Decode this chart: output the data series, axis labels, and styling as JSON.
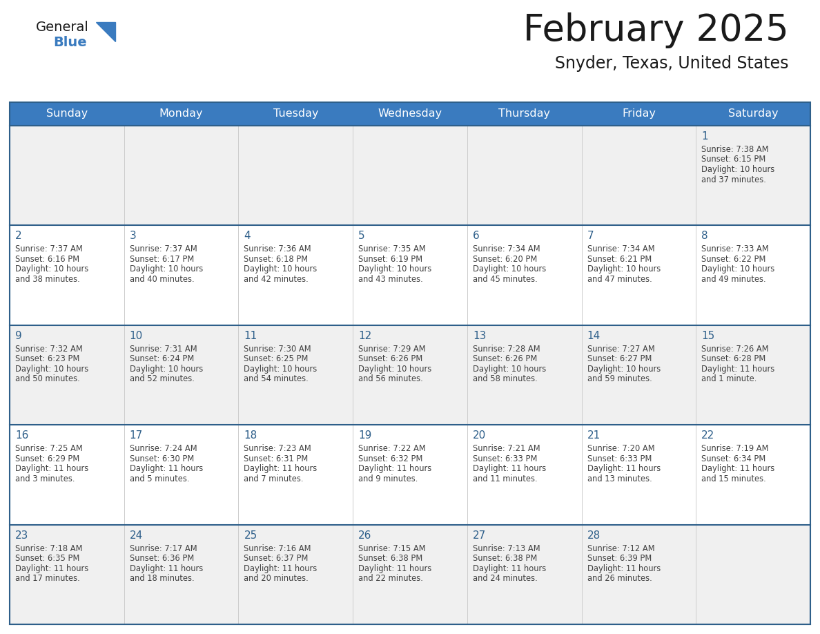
{
  "title": "February 2025",
  "subtitle": "Snyder, Texas, United States",
  "header_bg": "#3A7BBF",
  "header_text_color": "#FFFFFF",
  "cell_bg_white": "#FFFFFF",
  "cell_bg_gray": "#F0F0F0",
  "border_color": "#2E5F8A",
  "sep_color": "#BBBBBB",
  "day_names": [
    "Sunday",
    "Monday",
    "Tuesday",
    "Wednesday",
    "Thursday",
    "Friday",
    "Saturday"
  ],
  "calendar_data": [
    [
      null,
      null,
      null,
      null,
      null,
      null,
      {
        "day": 1,
        "sunrise": "7:38 AM",
        "sunset": "6:15 PM",
        "daylight": "10 hours",
        "daylight2": "and 37 minutes."
      }
    ],
    [
      {
        "day": 2,
        "sunrise": "7:37 AM",
        "sunset": "6:16 PM",
        "daylight": "10 hours",
        "daylight2": "and 38 minutes."
      },
      {
        "day": 3,
        "sunrise": "7:37 AM",
        "sunset": "6:17 PM",
        "daylight": "10 hours",
        "daylight2": "and 40 minutes."
      },
      {
        "day": 4,
        "sunrise": "7:36 AM",
        "sunset": "6:18 PM",
        "daylight": "10 hours",
        "daylight2": "and 42 minutes."
      },
      {
        "day": 5,
        "sunrise": "7:35 AM",
        "sunset": "6:19 PM",
        "daylight": "10 hours",
        "daylight2": "and 43 minutes."
      },
      {
        "day": 6,
        "sunrise": "7:34 AM",
        "sunset": "6:20 PM",
        "daylight": "10 hours",
        "daylight2": "and 45 minutes."
      },
      {
        "day": 7,
        "sunrise": "7:34 AM",
        "sunset": "6:21 PM",
        "daylight": "10 hours",
        "daylight2": "and 47 minutes."
      },
      {
        "day": 8,
        "sunrise": "7:33 AM",
        "sunset": "6:22 PM",
        "daylight": "10 hours",
        "daylight2": "and 49 minutes."
      }
    ],
    [
      {
        "day": 9,
        "sunrise": "7:32 AM",
        "sunset": "6:23 PM",
        "daylight": "10 hours",
        "daylight2": "and 50 minutes."
      },
      {
        "day": 10,
        "sunrise": "7:31 AM",
        "sunset": "6:24 PM",
        "daylight": "10 hours",
        "daylight2": "and 52 minutes."
      },
      {
        "day": 11,
        "sunrise": "7:30 AM",
        "sunset": "6:25 PM",
        "daylight": "10 hours",
        "daylight2": "and 54 minutes."
      },
      {
        "day": 12,
        "sunrise": "7:29 AM",
        "sunset": "6:26 PM",
        "daylight": "10 hours",
        "daylight2": "and 56 minutes."
      },
      {
        "day": 13,
        "sunrise": "7:28 AM",
        "sunset": "6:26 PM",
        "daylight": "10 hours",
        "daylight2": "and 58 minutes."
      },
      {
        "day": 14,
        "sunrise": "7:27 AM",
        "sunset": "6:27 PM",
        "daylight": "10 hours",
        "daylight2": "and 59 minutes."
      },
      {
        "day": 15,
        "sunrise": "7:26 AM",
        "sunset": "6:28 PM",
        "daylight": "11 hours",
        "daylight2": "and 1 minute."
      }
    ],
    [
      {
        "day": 16,
        "sunrise": "7:25 AM",
        "sunset": "6:29 PM",
        "daylight": "11 hours",
        "daylight2": "and 3 minutes."
      },
      {
        "day": 17,
        "sunrise": "7:24 AM",
        "sunset": "6:30 PM",
        "daylight": "11 hours",
        "daylight2": "and 5 minutes."
      },
      {
        "day": 18,
        "sunrise": "7:23 AM",
        "sunset": "6:31 PM",
        "daylight": "11 hours",
        "daylight2": "and 7 minutes."
      },
      {
        "day": 19,
        "sunrise": "7:22 AM",
        "sunset": "6:32 PM",
        "daylight": "11 hours",
        "daylight2": "and 9 minutes."
      },
      {
        "day": 20,
        "sunrise": "7:21 AM",
        "sunset": "6:33 PM",
        "daylight": "11 hours",
        "daylight2": "and 11 minutes."
      },
      {
        "day": 21,
        "sunrise": "7:20 AM",
        "sunset": "6:33 PM",
        "daylight": "11 hours",
        "daylight2": "and 13 minutes."
      },
      {
        "day": 22,
        "sunrise": "7:19 AM",
        "sunset": "6:34 PM",
        "daylight": "11 hours",
        "daylight2": "and 15 minutes."
      }
    ],
    [
      {
        "day": 23,
        "sunrise": "7:18 AM",
        "sunset": "6:35 PM",
        "daylight": "11 hours",
        "daylight2": "and 17 minutes."
      },
      {
        "day": 24,
        "sunrise": "7:17 AM",
        "sunset": "6:36 PM",
        "daylight": "11 hours",
        "daylight2": "and 18 minutes."
      },
      {
        "day": 25,
        "sunrise": "7:16 AM",
        "sunset": "6:37 PM",
        "daylight": "11 hours",
        "daylight2": "and 20 minutes."
      },
      {
        "day": 26,
        "sunrise": "7:15 AM",
        "sunset": "6:38 PM",
        "daylight": "11 hours",
        "daylight2": "and 22 minutes."
      },
      {
        "day": 27,
        "sunrise": "7:13 AM",
        "sunset": "6:38 PM",
        "daylight": "11 hours",
        "daylight2": "and 24 minutes."
      },
      {
        "day": 28,
        "sunrise": "7:12 AM",
        "sunset": "6:39 PM",
        "daylight": "11 hours",
        "daylight2": "and 26 minutes."
      },
      null
    ]
  ],
  "text_color_day_num": "#2E5F8A",
  "text_color_info": "#404040"
}
